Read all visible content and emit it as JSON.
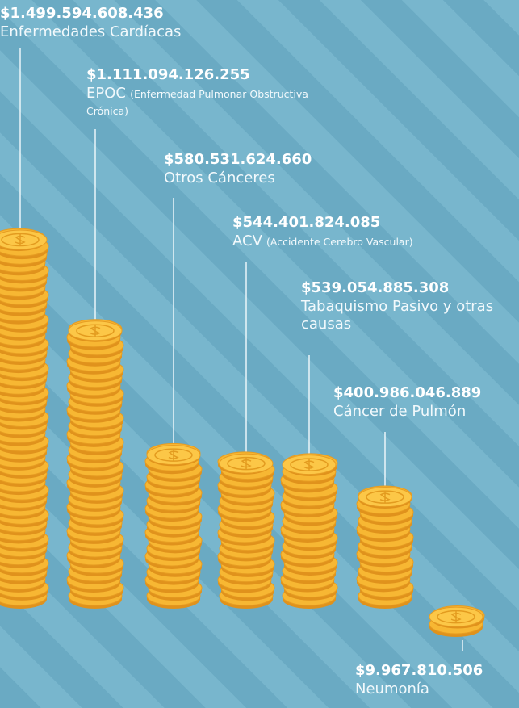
{
  "chart_data": {
    "type": "coin-stacks",
    "categories": [
      "Enfermedades Cardíacas",
      "EPOC",
      "Otros Cánceres",
      "ACV",
      "Tabaquismo Pasivo y otras causas",
      "Cáncer de Pulmón",
      "Neumonía"
    ],
    "category_details": [
      null,
      "(Enfermedad Pulmonar Obstructiva Crónica)",
      null,
      "(Accidente Cerebro Vascular)",
      null,
      null,
      null
    ],
    "values": [
      1499594608436,
      1111094126255,
      580531624660,
      544401824085,
      539054885308,
      400986046889,
      9967810506
    ],
    "value_labels": [
      "$1.499.594.608.436",
      "$1.111.094.126.255",
      "$580.531.624.660",
      "$544.401.824.085",
      "$539.054.885.308",
      "$400.986.046.889",
      "$9.967.810.506"
    ],
    "color": "#f7b733"
  }
}
